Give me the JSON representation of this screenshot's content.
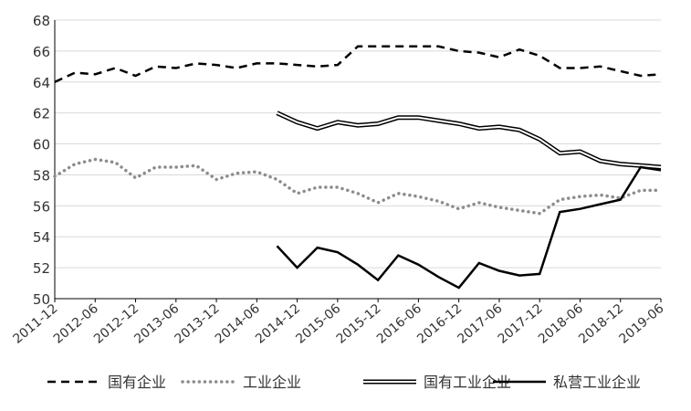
{
  "chart_data": {
    "type": "line",
    "title": "",
    "xlabel": "",
    "ylabel": "",
    "ylim": [
      50,
      68
    ],
    "y_ticks": [
      50,
      52,
      54,
      56,
      58,
      60,
      62,
      64,
      66,
      68
    ],
    "grid": "horizontal",
    "legend_position": "bottom",
    "x": [
      "2011-12",
      "2012-03",
      "2012-06",
      "2012-09",
      "2012-12",
      "2013-03",
      "2013-06",
      "2013-09",
      "2013-12",
      "2014-03",
      "2014-06",
      "2014-09",
      "2014-12",
      "2015-03",
      "2015-06",
      "2015-09",
      "2015-12",
      "2016-03",
      "2016-06",
      "2016-09",
      "2016-12",
      "2017-03",
      "2017-06",
      "2017-09",
      "2017-12",
      "2018-03",
      "2018-06",
      "2018-09",
      "2018-12",
      "2019-03",
      "2019-06"
    ],
    "x_tick_labels": [
      "2011-12",
      "2012-06",
      "2012-12",
      "2013-06",
      "2013-12",
      "2014-06",
      "2014-12",
      "2015-06",
      "2015-12",
      "2016-06",
      "2016-12",
      "2017-06",
      "2017-12",
      "2018-06",
      "2018-12",
      "2019-06"
    ],
    "series": [
      {
        "name": "国有企业",
        "style": "dashed",
        "color": "#000000",
        "values": [
          64.0,
          64.6,
          64.5,
          64.9,
          64.4,
          65.0,
          64.9,
          65.2,
          65.1,
          64.9,
          65.2,
          65.2,
          65.1,
          65.0,
          65.1,
          66.3,
          66.3,
          66.3,
          66.3,
          66.3,
          66.0,
          65.9,
          65.6,
          66.1,
          65.7,
          64.9,
          64.9,
          65.0,
          64.7,
          64.4,
          64.5
        ]
      },
      {
        "name": "工业企业",
        "style": "dotted",
        "color": "#8c8c8c",
        "values": [
          57.9,
          58.7,
          59.0,
          58.8,
          57.8,
          58.5,
          58.5,
          58.6,
          57.7,
          58.1,
          58.2,
          57.7,
          56.8,
          57.2,
          57.2,
          56.8,
          56.2,
          56.8,
          56.6,
          56.3,
          55.8,
          56.2,
          55.9,
          55.7,
          55.5,
          56.4,
          56.6,
          56.7,
          56.5,
          57.0,
          57.0
        ]
      },
      {
        "name": "国有工业企业",
        "style": "double",
        "color": "#000000",
        "values": [
          null,
          null,
          null,
          null,
          null,
          null,
          null,
          null,
          null,
          null,
          null,
          62.0,
          61.4,
          61.0,
          61.4,
          61.2,
          61.3,
          61.7,
          61.7,
          61.5,
          61.3,
          61.0,
          61.1,
          60.9,
          60.3,
          59.4,
          59.5,
          58.9,
          58.7,
          58.6,
          58.5
        ]
      },
      {
        "name": "私营工业企业",
        "style": "solid",
        "color": "#000000",
        "values": [
          null,
          null,
          null,
          null,
          null,
          null,
          null,
          null,
          null,
          null,
          null,
          53.4,
          52.0,
          53.3,
          53.0,
          52.2,
          51.2,
          52.8,
          52.2,
          51.4,
          50.7,
          52.3,
          51.8,
          51.5,
          51.6,
          55.6,
          55.8,
          56.1,
          56.4,
          58.5,
          58.3
        ]
      }
    ]
  }
}
